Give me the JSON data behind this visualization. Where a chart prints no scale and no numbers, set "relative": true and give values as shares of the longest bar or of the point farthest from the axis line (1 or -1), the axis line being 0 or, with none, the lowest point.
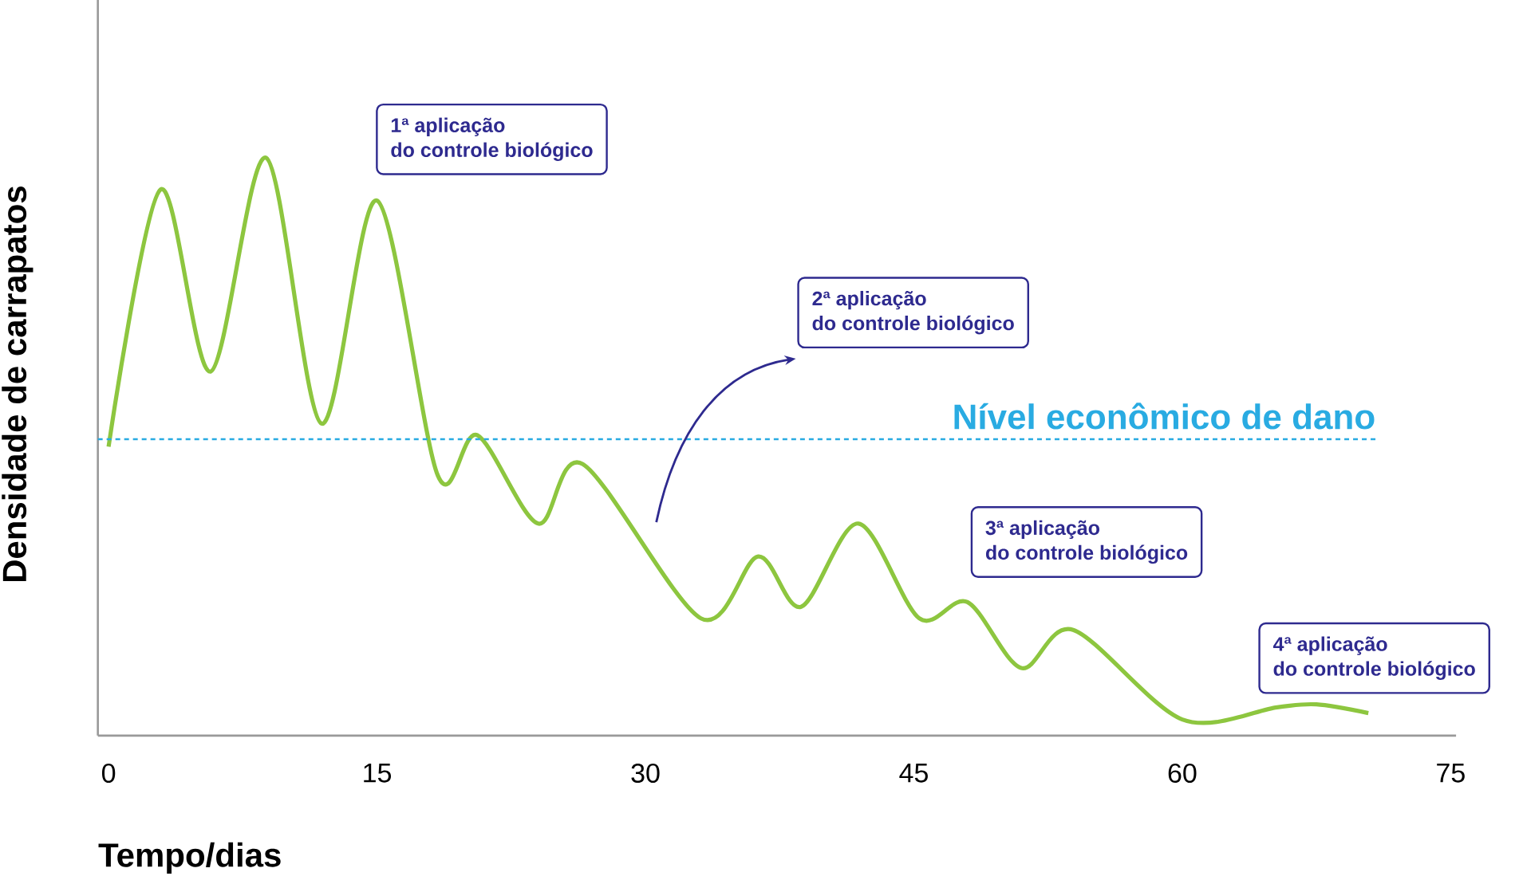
{
  "chart_data": {
    "type": "line",
    "relative": true,
    "xlabel": "Tempo/dias",
    "ylabel": "Densidade de carrapatos",
    "x": [
      0,
      2.9,
      5.7,
      8.8,
      11.9,
      15.0,
      18.4,
      20.6,
      24.0,
      26.5,
      33.1,
      36.3,
      38.7,
      41.9,
      45.3,
      48.0,
      51.0,
      53.9,
      60.0,
      65.3,
      67.5,
      70.4
    ],
    "series": [
      {
        "color": "#8dc63f",
        "values": [
          0.5,
          0.945,
          0.63,
          1.0,
          0.54,
          0.926,
          0.45,
          0.52,
          0.367,
          0.47,
          0.203,
          0.31,
          0.223,
          0.367,
          0.203,
          0.231,
          0.117,
          0.183,
          0.028,
          0.049,
          0.054,
          0.039
        ]
      }
    ],
    "xlim": [
      -0.6,
      75.3
    ],
    "xticks": [
      0,
      15,
      30,
      45,
      60,
      75
    ],
    "tick_labels": "x",
    "ref_lines": [
      {
        "axis": "y",
        "value": 0.513,
        "label": "Nível econômico de dano",
        "color": "#29abe2",
        "line_style": "dashed"
      }
    ],
    "annotations": [
      "1ª aplicação",
      "do controle biológico",
      "2ª aplicação",
      "do controle biológico",
      "3ª aplicação",
      "do controle biológico",
      "4ª aplicação",
      "do controle biológico"
    ]
  }
}
